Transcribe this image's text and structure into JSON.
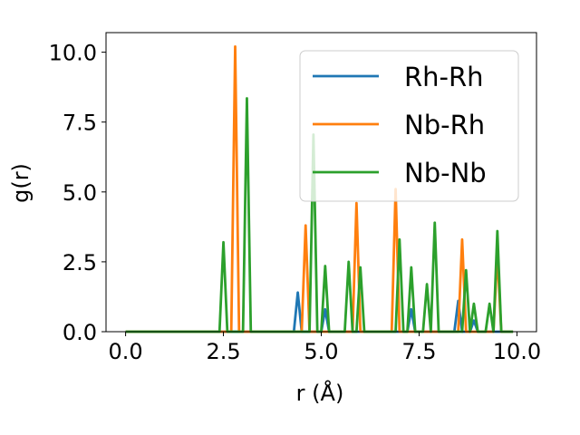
{
  "chart_data": {
    "type": "line",
    "title": "",
    "xlabel": "r (Å)",
    "ylabel": "g(r)",
    "xlim": [
      -0.5,
      10.5
    ],
    "ylim": [
      0.0,
      10.7
    ],
    "xticks": [
      "0.0",
      "2.5",
      "5.0",
      "7.5",
      "10.0"
    ],
    "yticks": [
      "0.0",
      "2.5",
      "5.0",
      "7.5",
      "10.0"
    ],
    "grid": false,
    "legend_position": "top-right",
    "series": [
      {
        "name": "Rh-Rh",
        "color": "#1f77b4",
        "x": [
          0.0,
          4.3,
          4.4,
          4.5,
          5.0,
          5.1,
          5.2,
          7.2,
          7.3,
          7.4,
          8.4,
          8.5,
          8.6,
          8.8,
          8.9,
          9.0,
          9.9
        ],
        "y": [
          0.0,
          0.0,
          1.4,
          0.0,
          0.0,
          0.8,
          0.0,
          0.0,
          0.8,
          0.0,
          0.0,
          1.1,
          0.0,
          0.0,
          0.4,
          0.0,
          0.0
        ]
      },
      {
        "name": "Nb-Rh",
        "color": "#ff7f0e",
        "x": [
          0.0,
          2.7,
          2.8,
          2.9,
          4.5,
          4.6,
          4.7,
          5.8,
          5.9,
          6.0,
          6.8,
          6.9,
          7.0,
          8.5,
          8.6,
          8.7,
          9.4,
          9.5,
          9.6,
          9.9
        ],
        "y": [
          0.0,
          0.0,
          10.2,
          0.0,
          0.0,
          3.8,
          0.0,
          0.0,
          4.6,
          0.0,
          0.0,
          5.1,
          0.0,
          0.0,
          3.3,
          0.0,
          0.0,
          2.8,
          0.0,
          0.0
        ]
      },
      {
        "name": "Nb-Nb",
        "color": "#2ca02c",
        "x": [
          0.0,
          2.4,
          2.5,
          2.6,
          3.0,
          3.1,
          3.2,
          4.7,
          4.8,
          4.9,
          5.0,
          5.1,
          5.2,
          5.6,
          5.7,
          5.8,
          5.9,
          6.0,
          6.1,
          6.9,
          7.0,
          7.1,
          7.2,
          7.3,
          7.4,
          7.6,
          7.7,
          7.8,
          7.9,
          8.0,
          8.6,
          8.7,
          8.8,
          8.9,
          9.0,
          9.2,
          9.3,
          9.4,
          9.5,
          9.6,
          9.9
        ],
        "y": [
          0.0,
          0.0,
          3.2,
          0.0,
          0.0,
          8.35,
          0.0,
          0.0,
          7.05,
          0.0,
          0.0,
          2.35,
          0.0,
          0.0,
          2.5,
          0.0,
          0.0,
          2.3,
          0.0,
          0.0,
          3.3,
          0.0,
          0.0,
          2.3,
          0.0,
          0.0,
          1.7,
          0.0,
          3.9,
          0.0,
          0.0,
          2.2,
          0.0,
          1.0,
          0.0,
          0.0,
          1.0,
          0.0,
          3.6,
          0.0,
          0.0
        ]
      }
    ]
  }
}
